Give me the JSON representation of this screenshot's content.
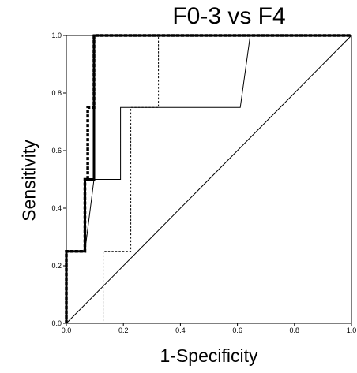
{
  "chart_data": {
    "type": "line",
    "title": "F0-3 vs F4",
    "xlabel": "1-Specificity",
    "ylabel": "Sensitivity",
    "xlim": [
      0,
      1
    ],
    "ylim": [
      0,
      1
    ],
    "xticks": [
      "0.0",
      "0.2",
      "0.4",
      "0.6",
      "0.8",
      "1.0"
    ],
    "yticks": [
      "0.0",
      "0.2",
      "0.4",
      "0.6",
      "0.8",
      "1.0"
    ],
    "grid": false,
    "legend": "none",
    "reference_line": [
      [
        0,
        0
      ],
      [
        1,
        1
      ]
    ],
    "series": [
      {
        "style": "thick-solid",
        "x": [
          0,
          0,
          0.065,
          0.065,
          0.097,
          0.097,
          1.0
        ],
        "y": [
          0,
          0.25,
          0.25,
          0.5,
          0.5,
          1.0,
          1.0
        ]
      },
      {
        "style": "thick-dashed",
        "x": [
          0,
          0,
          0.065,
          0.065,
          0.075,
          0.075,
          0.097,
          0.097,
          1.0
        ],
        "y": [
          0,
          0.25,
          0.25,
          0.5,
          0.5,
          0.75,
          0.75,
          1.0,
          1.0
        ]
      },
      {
        "style": "thin-solid",
        "x": [
          0,
          0,
          0.065,
          0.097,
          0.19,
          0.19,
          0.61,
          0.645,
          1.0
        ],
        "y": [
          0,
          0.25,
          0.25,
          0.5,
          0.5,
          0.75,
          0.75,
          1.0,
          1.0
        ]
      },
      {
        "style": "thin-dashed",
        "x": [
          0,
          0.129,
          0.129,
          0.226,
          0.226,
          0.323,
          0.323,
          1.0
        ],
        "y": [
          0,
          0,
          0.25,
          0.25,
          0.75,
          0.75,
          1.0,
          1.0
        ]
      }
    ]
  }
}
